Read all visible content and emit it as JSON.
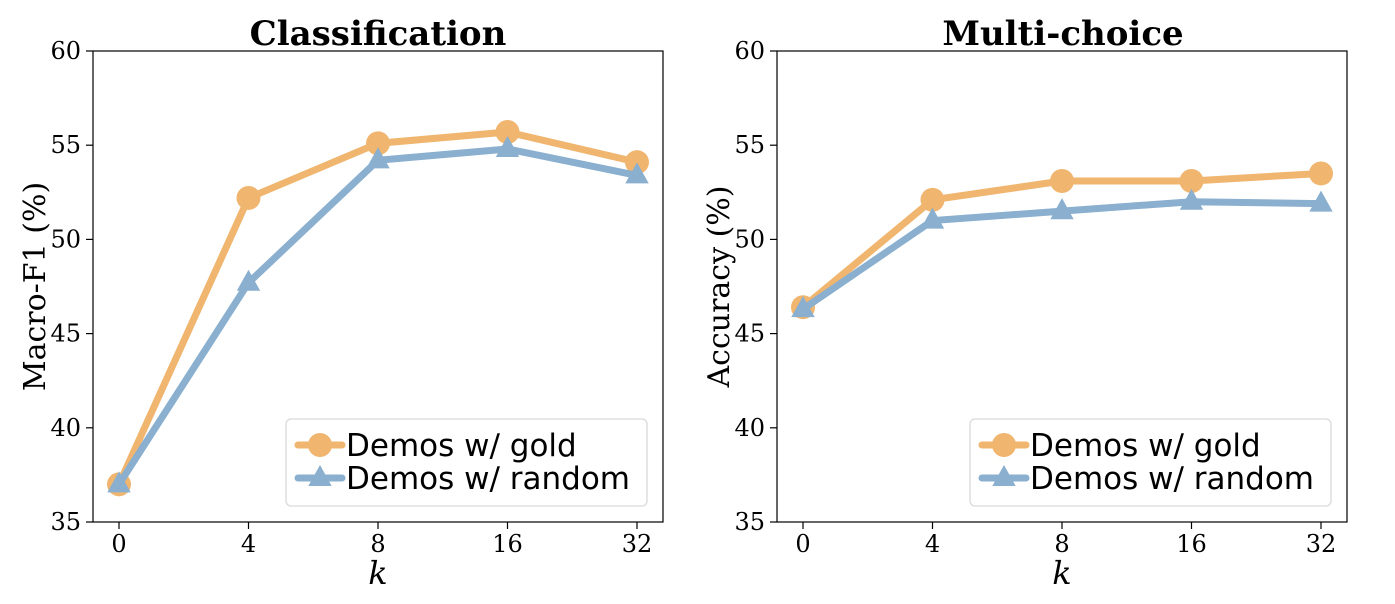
{
  "chart_data": [
    {
      "type": "line",
      "title": "Classification",
      "xlabel": "k",
      "ylabel": "Macro-F1 (%)",
      "categories": [
        "0",
        "4",
        "8",
        "16",
        "32"
      ],
      "ylim": [
        35,
        60
      ],
      "yticks": [
        "35",
        "40",
        "45",
        "50",
        "55",
        "60"
      ],
      "legend_position": "lower-right",
      "series": [
        {
          "name": "Demos w/ gold",
          "color": "#f0b56e",
          "marker": "circle",
          "values": [
            37.0,
            52.2,
            55.1,
            55.7,
            54.1
          ]
        },
        {
          "name": "Demos w/ random",
          "color": "#8aafcf",
          "marker": "triangle",
          "values": [
            37.0,
            47.7,
            54.2,
            54.8,
            53.4
          ]
        }
      ]
    },
    {
      "type": "line",
      "title": "Multi-choice",
      "xlabel": "k",
      "ylabel": "Accuracy (%)",
      "categories": [
        "0",
        "4",
        "8",
        "16",
        "32"
      ],
      "ylim": [
        35,
        60
      ],
      "yticks": [
        "35",
        "40",
        "45",
        "50",
        "55",
        "60"
      ],
      "legend_position": "lower-right",
      "series": [
        {
          "name": "Demos w/ gold",
          "color": "#f0b56e",
          "marker": "circle",
          "values": [
            46.4,
            52.1,
            53.1,
            53.1,
            53.5
          ]
        },
        {
          "name": "Demos w/ random",
          "color": "#8aafcf",
          "marker": "triangle",
          "values": [
            46.3,
            51.0,
            51.5,
            52.0,
            51.9
          ]
        }
      ]
    }
  ]
}
